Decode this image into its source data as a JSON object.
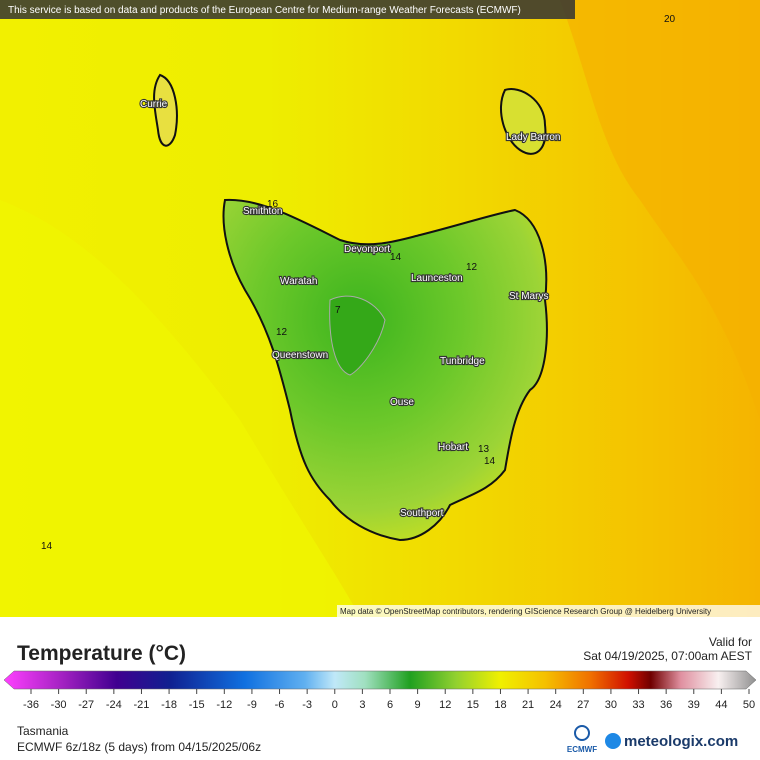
{
  "header": {
    "notice": "This service is based on data and products of the European Centre for Medium-range Weather Forecasts (ECMWF)"
  },
  "map": {
    "cities": [
      "Currie",
      "Lady Barron",
      "Smithton",
      "Devonport",
      "Waratah",
      "Launceston",
      "St Marys",
      "Queenstown",
      "Tunbridge",
      "Ouse",
      "Hobart",
      "Southport"
    ],
    "contour_labels": [
      20,
      16,
      14,
      12,
      12,
      7,
      13,
      14,
      14
    ],
    "attribution": "Map data © OpenStreetMap contributors, rendering GIScience Research Group @ Heidelberg University"
  },
  "legend": {
    "title": "Temperature (°C)",
    "valid_label": "Valid for",
    "valid_time": "Sat 04/19/2025, 07:00am AEST",
    "ticks": [
      -36,
      -30,
      -27,
      -24,
      -21,
      -18,
      -15,
      -12,
      -9,
      -6,
      -3,
      0,
      3,
      6,
      9,
      12,
      15,
      18,
      21,
      24,
      27,
      30,
      33,
      36,
      39,
      44,
      50
    ]
  },
  "footer": {
    "region": "Tasmania",
    "model": "ECMWF 6z/18z (5 days)  from  04/15/2025/06z",
    "ecmwf_logo": "ECMWF",
    "brand": "meteologix.com"
  }
}
